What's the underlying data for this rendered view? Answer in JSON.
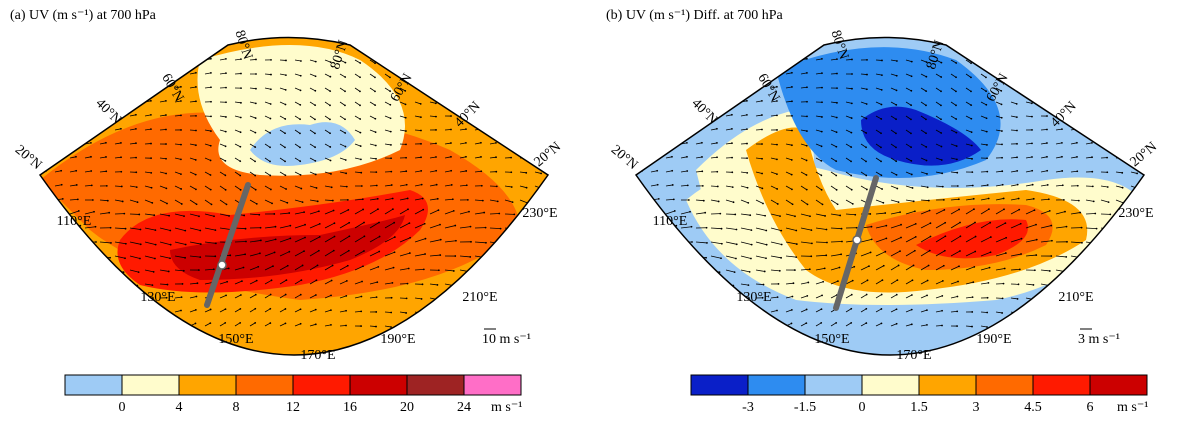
{
  "panels": [
    {
      "title": "(a) UV (m s⁻¹) at 700 hPa",
      "lat_labels": [
        "20°N",
        "40°N",
        "60°N",
        "80°N",
        "80°N",
        "60°N",
        "40°N",
        "20°N"
      ],
      "lon_labels": [
        "110°E",
        "130°E",
        "150°E",
        "170°E",
        "190°E",
        "210°E",
        "230°E"
      ],
      "vector_scale": "10 m s⁻¹",
      "colorbar": {
        "colors": [
          "#9ecbf5",
          "#fffccc",
          "#ffa500",
          "#ff6a00",
          "#ff1a00",
          "#cc0000",
          "#9e2323",
          "#ff6ec7"
        ],
        "ticks": [
          "0",
          "4",
          "8",
          "12",
          "16",
          "20",
          "24"
        ],
        "unit": "m s⁻¹"
      }
    },
    {
      "title": "(b) UV (m s⁻¹) Diff. at 700 hPa",
      "lat_labels": [
        "20°N",
        "40°N",
        "60°N",
        "80°N",
        "80°N",
        "60°N",
        "40°N",
        "20°N"
      ],
      "lon_labels": [
        "110°E",
        "130°E",
        "150°E",
        "170°E",
        "190°E",
        "210°E",
        "230°E"
      ],
      "vector_scale": "3 m s⁻¹",
      "colorbar": {
        "colors": [
          "#0a1fc8",
          "#2e8cf0",
          "#9ecbf5",
          "#fffccc",
          "#ffa500",
          "#ff6a00",
          "#ff1a00",
          "#cc0000"
        ],
        "ticks": [
          "-3",
          "-1.5",
          "0",
          "1.5",
          "3",
          "4.5",
          "6"
        ],
        "unit": "m s⁻¹"
      }
    }
  ]
}
